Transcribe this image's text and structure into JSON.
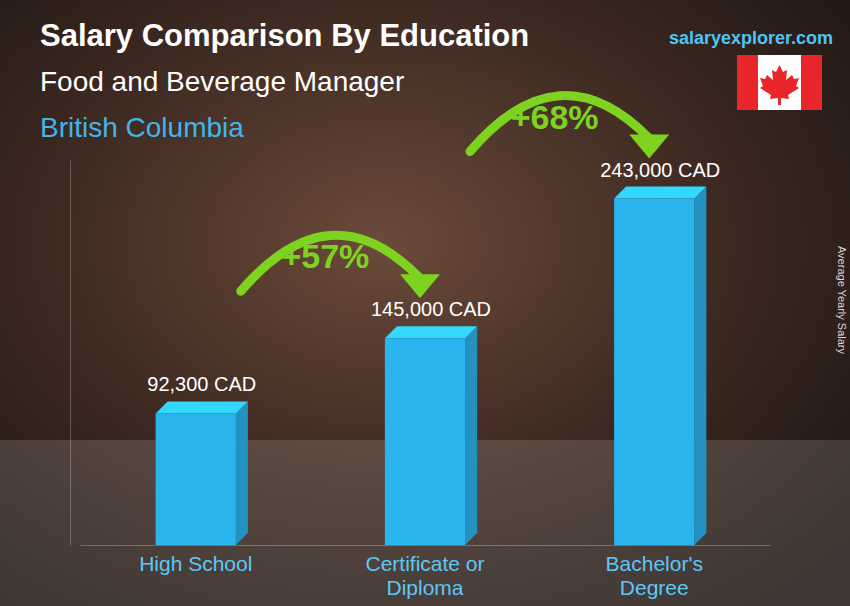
{
  "chart_data": {
    "type": "bar",
    "title": "Salary Comparison By Education",
    "subtitle": "Food and Beverage Manager",
    "location": "British Columbia",
    "source": "salaryexplorer.com",
    "y_label": "Average Yearly Salary",
    "categories": [
      "High School",
      "Certificate or Diploma",
      "Bachelor's Degree"
    ],
    "values": [
      92300,
      145000,
      243000
    ],
    "value_labels": [
      "92,300 CAD",
      "145,000 CAD",
      "243,000 CAD"
    ],
    "data_labels": true,
    "annotations": [
      "+57%",
      "+68%"
    ],
    "color": "#2bb5ef",
    "ylim": [
      0,
      270000
    ],
    "yticks": [],
    "tick_labels": "x",
    "grid": false
  }
}
